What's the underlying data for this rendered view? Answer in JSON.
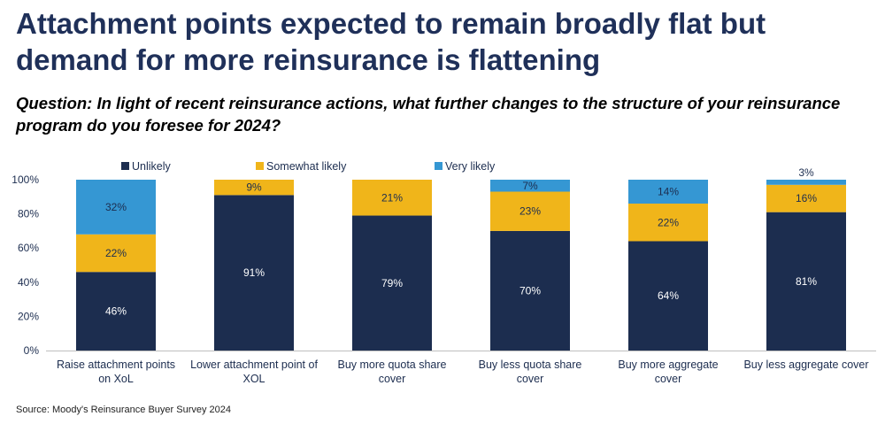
{
  "title": "Attachment points expected to remain broadly flat but demand for more reinsurance is flattening",
  "subtitle": "Question: In light of recent reinsurance actions, what further changes to the structure of your reinsurance program do you foresee for 2024?",
  "source": "Source: Moody's Reinsurance Buyer Survey 2024",
  "colors": {
    "unlikely": "#1c2d4f",
    "somewhat_likely": "#f0b51a",
    "very_likely": "#3597d3"
  },
  "chart_data": {
    "type": "bar",
    "stacked": true,
    "categories": [
      [
        "Raise attachment points",
        "on XoL"
      ],
      [
        "Lower attachment point of",
        "XOL"
      ],
      [
        "Buy more quota share",
        "cover"
      ],
      [
        "Buy less quota share",
        "cover"
      ],
      [
        "Buy more aggregate",
        "cover"
      ],
      [
        "Buy less aggregate cover"
      ]
    ],
    "series": [
      {
        "name": "Unlikely",
        "values": [
          46,
          91,
          79,
          70,
          64,
          81
        ],
        "labels": [
          "46%",
          "91%",
          "79%",
          "70%",
          "64%",
          "81%"
        ]
      },
      {
        "name": "Somewhat likely",
        "values": [
          22,
          9,
          21,
          23,
          22,
          16
        ],
        "labels": [
          "22%",
          "9%",
          "21%",
          "23%",
          "22%",
          "16%"
        ]
      },
      {
        "name": "Very likely",
        "values": [
          32,
          0,
          0,
          7,
          14,
          3
        ],
        "labels": [
          "32%",
          "",
          "",
          "7%",
          "14%",
          "3%"
        ]
      }
    ],
    "yticks": [
      "0%",
      "20%",
      "40%",
      "60%",
      "80%",
      "100%"
    ],
    "ylim": [
      0,
      100
    ],
    "legend_position": "top"
  }
}
